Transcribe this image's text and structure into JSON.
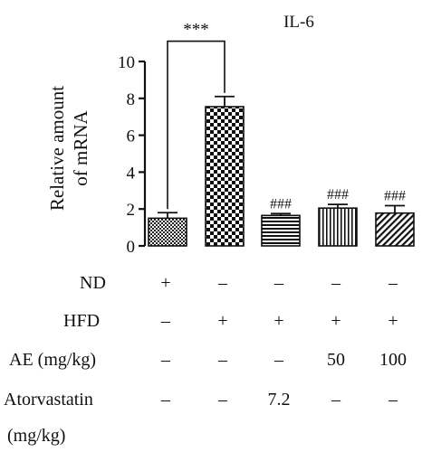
{
  "chart_data": {
    "type": "bar",
    "title": "IL-6",
    "ylabel_lines": [
      "Relative amount",
      "of mRNA"
    ],
    "ylim": [
      0,
      10
    ],
    "yticks": [
      0,
      2,
      4,
      6,
      8,
      10
    ],
    "bars": [
      {
        "value": 1.5,
        "error": 0.3,
        "pattern": "checker-fine",
        "annotation": ""
      },
      {
        "value": 7.55,
        "error": 0.55,
        "pattern": "checker-coarse",
        "annotation": ""
      },
      {
        "value": 1.65,
        "error": 0.1,
        "pattern": "horizontal-lines",
        "annotation": "###"
      },
      {
        "value": 2.05,
        "error": 0.2,
        "pattern": "vertical-lines",
        "annotation": "###"
      },
      {
        "value": 1.78,
        "error": 0.4,
        "pattern": "diagonal-lines",
        "annotation": "###"
      }
    ],
    "significance": {
      "from": 0,
      "to": 1,
      "label": "***",
      "y": 11.1
    },
    "conditions": [
      {
        "label": "ND",
        "values": [
          "+",
          "–",
          "–",
          "–",
          "–"
        ]
      },
      {
        "label": "HFD",
        "values": [
          "–",
          "+",
          "+",
          "+",
          "+"
        ]
      },
      {
        "label": "AE (mg/kg)",
        "values": [
          "–",
          "–",
          "–",
          "50",
          "100"
        ]
      },
      {
        "label": "Atorvastatin",
        "label2": "(mg/kg)",
        "values": [
          "–",
          "–",
          "7.2",
          "–",
          "–"
        ]
      }
    ]
  }
}
